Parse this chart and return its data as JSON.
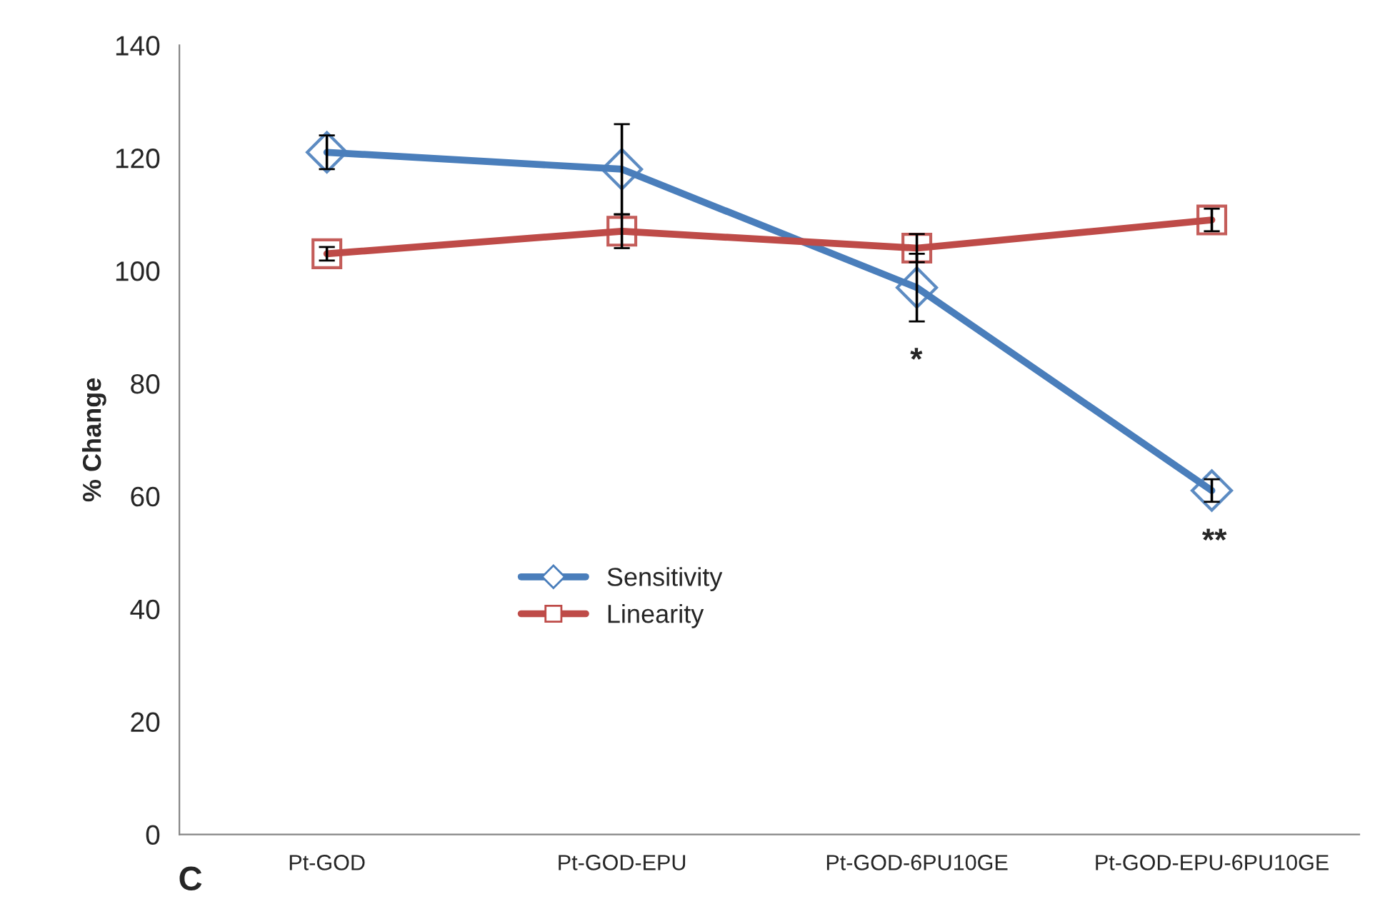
{
  "chart_data": {
    "type": "line",
    "ylabel": "% Change",
    "categories": [
      "Pt-GOD",
      "Pt-GOD-EPU",
      "Pt-GOD-6PU10GE",
      "Pt-GOD-EPU-6PU10GE"
    ],
    "series": [
      {
        "name": "Sensitivity",
        "color": "#4a7ebb",
        "marker": "diamond",
        "values": [
          121,
          118,
          97,
          61
        ],
        "errors": [
          3,
          8,
          6,
          2
        ]
      },
      {
        "name": "Linearity",
        "color": "#be4b48",
        "marker": "square",
        "values": [
          103,
          107,
          104,
          109
        ],
        "errors": [
          1.2,
          3,
          2.5,
          2
        ]
      }
    ],
    "ylim": [
      0,
      140
    ],
    "yticks": [
      0,
      20,
      40,
      60,
      80,
      100,
      120,
      140
    ],
    "grid": false,
    "legend": "center left",
    "line_style": "solid",
    "annotations": [
      "*",
      "**",
      "C"
    ]
  }
}
